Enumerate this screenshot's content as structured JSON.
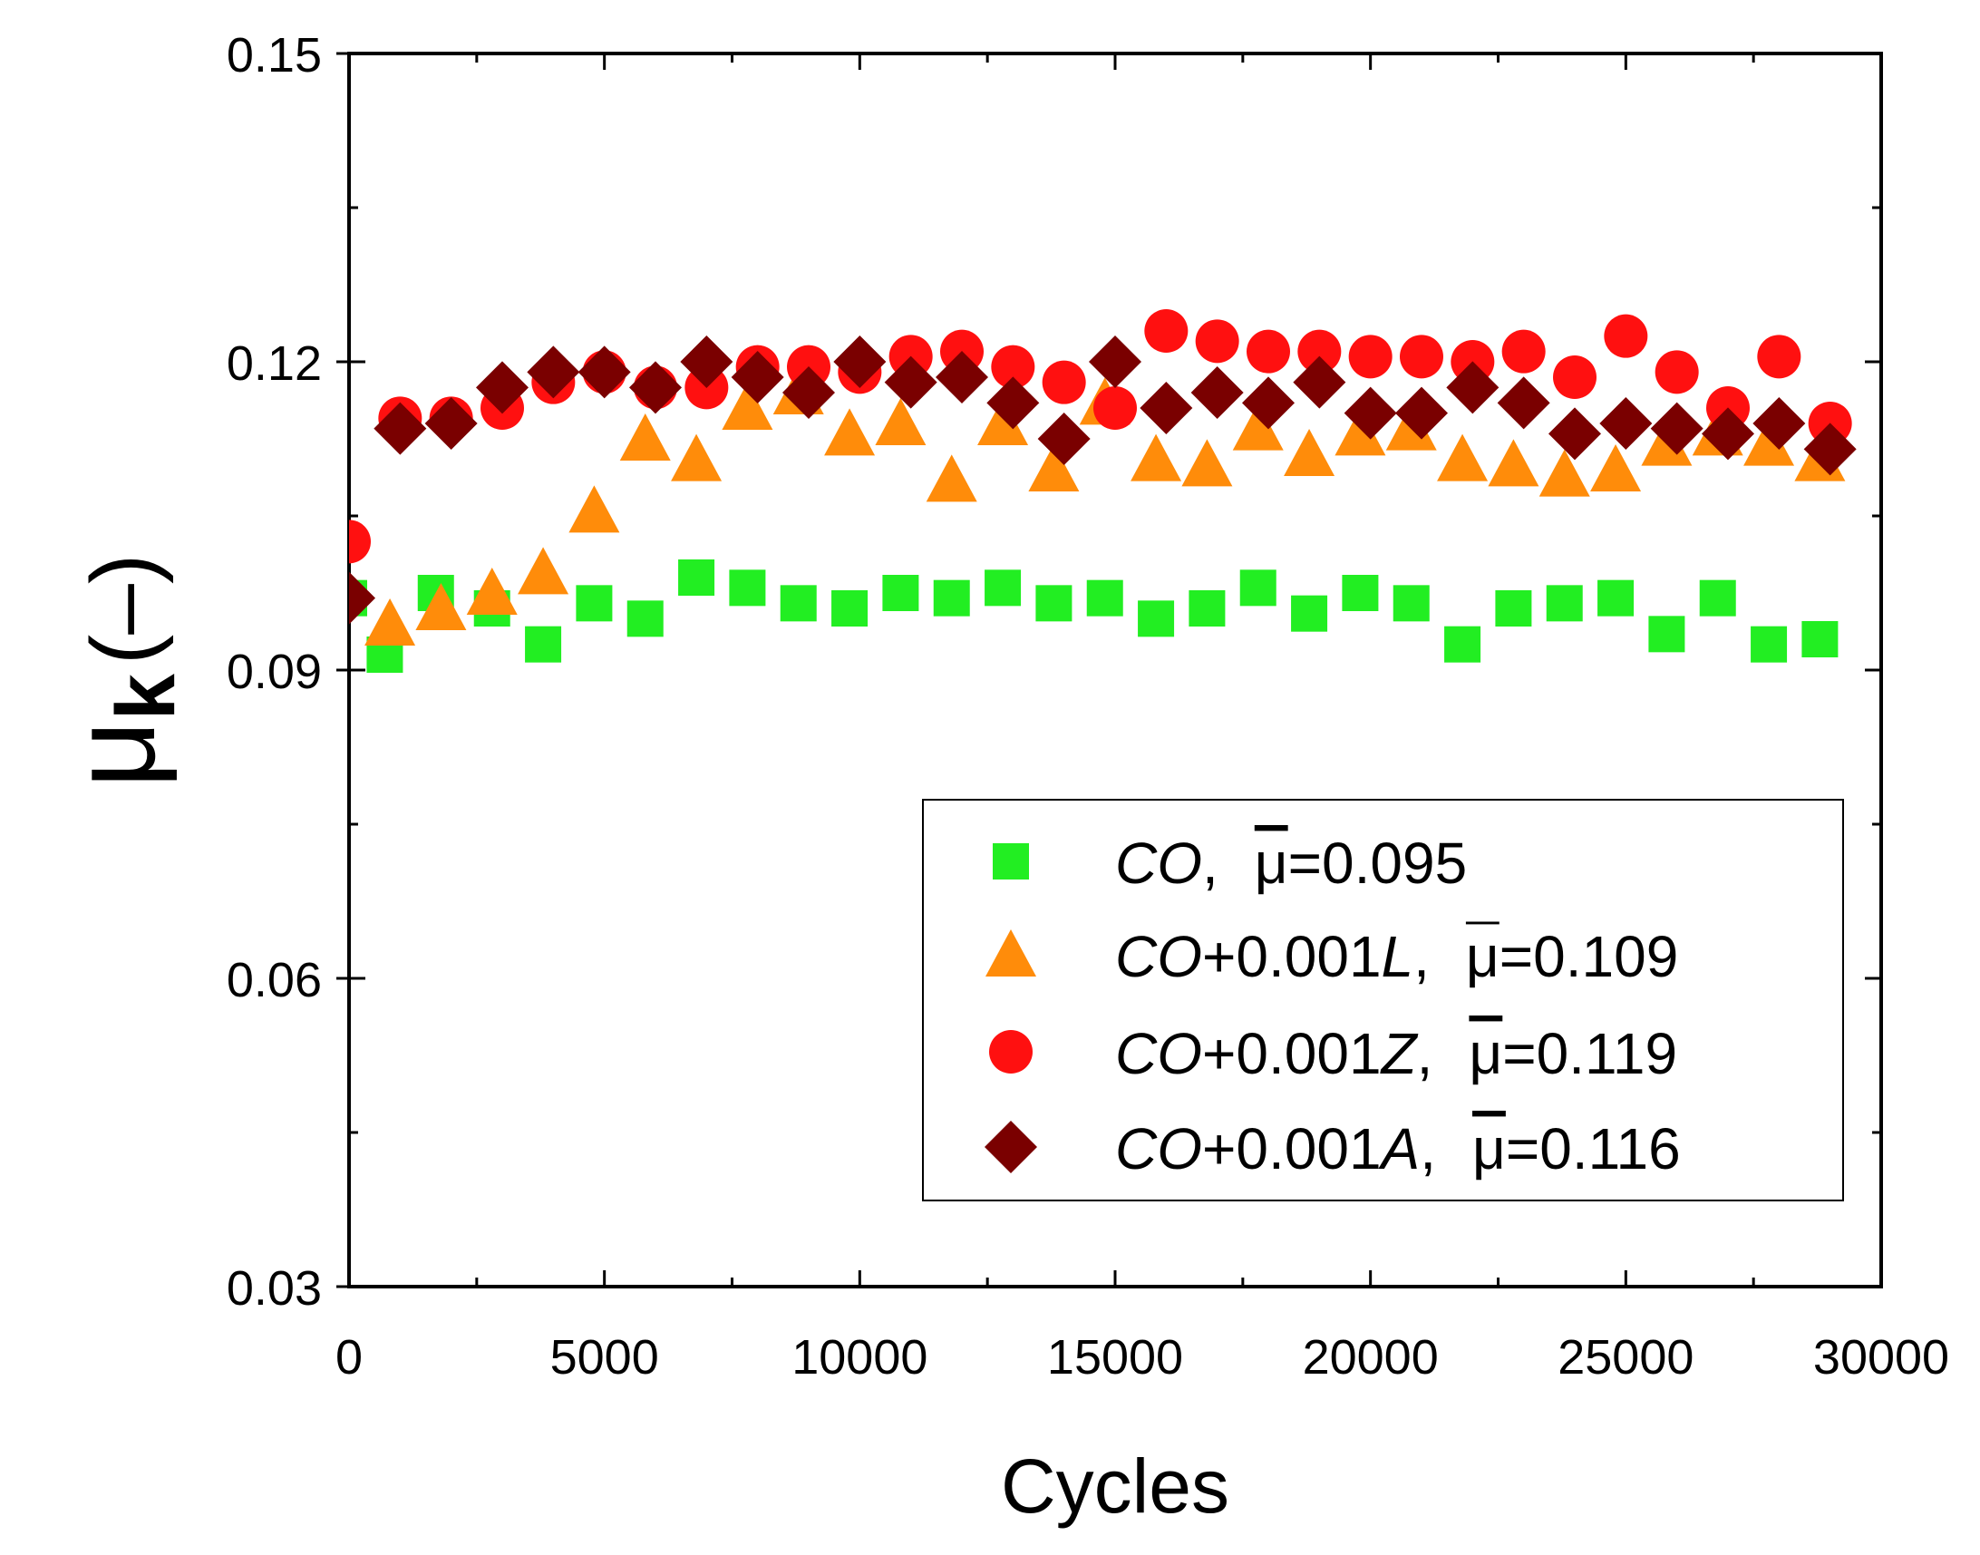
{
  "chart_data": {
    "type": "scatter",
    "title": "",
    "xlabel": "Cycles",
    "ylabel": "μk (–)",
    "ylabel_parts": {
      "symbol": "μ",
      "subscript": "k",
      "unit": "(–)"
    },
    "xlim": [
      0,
      30000
    ],
    "ylim": [
      0.03,
      0.15
    ],
    "xticks": [
      "0",
      "5000",
      "10000",
      "15000",
      "20000",
      "25000",
      "30000"
    ],
    "xtick_values": [
      0,
      5000,
      10000,
      15000,
      20000,
      25000,
      30000
    ],
    "yticks": [
      "0.03",
      "0.06",
      "0.09",
      "0.12",
      "0.15"
    ],
    "ytick_values": [
      0.03,
      0.06,
      0.09,
      0.12,
      0.15
    ],
    "grid": false,
    "legend_position": "bottom-right",
    "series": [
      {
        "name": "CO, μ̄=0.095",
        "label_italic": "CO",
        "label_rest": ",",
        "mean_value": "0.095",
        "marker": "square",
        "color": "#22ee22",
        "points": [
          [
            0,
            0.097
          ],
          [
            700,
            0.0915
          ],
          [
            1700,
            0.0975
          ],
          [
            2800,
            0.096
          ],
          [
            3800,
            0.0925
          ],
          [
            4800,
            0.0965
          ],
          [
            5800,
            0.095
          ],
          [
            6800,
            0.099
          ],
          [
            7800,
            0.098
          ],
          [
            8800,
            0.0965
          ],
          [
            9800,
            0.096
          ],
          [
            10800,
            0.0975
          ],
          [
            11800,
            0.097
          ],
          [
            12800,
            0.098
          ],
          [
            13800,
            0.0965
          ],
          [
            14800,
            0.097
          ],
          [
            15800,
            0.095
          ],
          [
            16800,
            0.096
          ],
          [
            17800,
            0.098
          ],
          [
            18800,
            0.0955
          ],
          [
            19800,
            0.0975
          ],
          [
            20800,
            0.0965
          ],
          [
            21800,
            0.0925
          ],
          [
            22800,
            0.096
          ],
          [
            23800,
            0.0965
          ],
          [
            24800,
            0.097
          ],
          [
            25800,
            0.0935
          ],
          [
            26800,
            0.097
          ],
          [
            27800,
            0.0925
          ],
          [
            28800,
            0.093
          ]
        ]
      },
      {
        "name": "CO+0.001L, μ̄=0.109",
        "label_italic": "CO",
        "label_rest": "+0.001",
        "label_italic2": "L",
        "label_rest2": ",",
        "mean_value": "0.109",
        "marker": "triangle",
        "color": "#ff8c0a",
        "points": [
          [
            800,
            0.0945
          ],
          [
            1800,
            0.096
          ],
          [
            2800,
            0.0975
          ],
          [
            3800,
            0.0995
          ],
          [
            4800,
            0.1055
          ],
          [
            5800,
            0.1125
          ],
          [
            6800,
            0.1105
          ],
          [
            7800,
            0.1155
          ],
          [
            8800,
            0.117
          ],
          [
            9800,
            0.113
          ],
          [
            10800,
            0.114
          ],
          [
            11800,
            0.1085
          ],
          [
            12800,
            0.114
          ],
          [
            13800,
            0.1095
          ],
          [
            14800,
            0.116
          ],
          [
            15800,
            0.1105
          ],
          [
            16800,
            0.11
          ],
          [
            17800,
            0.1135
          ],
          [
            18800,
            0.111
          ],
          [
            19800,
            0.113
          ],
          [
            20800,
            0.1135
          ],
          [
            21800,
            0.1105
          ],
          [
            22800,
            0.11
          ],
          [
            23800,
            0.109
          ],
          [
            24800,
            0.1095
          ],
          [
            25800,
            0.112
          ],
          [
            26800,
            0.113
          ],
          [
            27800,
            0.112
          ],
          [
            28800,
            0.1105
          ]
        ]
      },
      {
        "name": "CO+0.001Z, μ̄=0.119",
        "label_italic": "CO",
        "label_rest": "+0.001",
        "label_italic2": "Z",
        "label_rest2": ",",
        "mean_value": "0.119",
        "marker": "circle",
        "color": "#ff1010",
        "points": [
          [
            0,
            0.1025
          ],
          [
            1000,
            0.1145
          ],
          [
            2000,
            0.1145
          ],
          [
            3000,
            0.1155
          ],
          [
            4000,
            0.118
          ],
          [
            5000,
            0.119
          ],
          [
            6000,
            0.1175
          ],
          [
            7000,
            0.1175
          ],
          [
            8000,
            0.1195
          ],
          [
            9000,
            0.1195
          ],
          [
            10000,
            0.119
          ],
          [
            11000,
            0.1205
          ],
          [
            12000,
            0.121
          ],
          [
            13000,
            0.1195
          ],
          [
            14000,
            0.118
          ],
          [
            15000,
            0.1155
          ],
          [
            16000,
            0.123
          ],
          [
            17000,
            0.122
          ],
          [
            18000,
            0.121
          ],
          [
            19000,
            0.121
          ],
          [
            20000,
            0.1205
          ],
          [
            21000,
            0.1205
          ],
          [
            22000,
            0.12
          ],
          [
            23000,
            0.121
          ],
          [
            24000,
            0.1185
          ],
          [
            25000,
            0.1225
          ],
          [
            26000,
            0.119
          ],
          [
            27000,
            0.1155
          ],
          [
            28000,
            0.1205
          ],
          [
            29000,
            0.114
          ]
        ]
      },
      {
        "name": "CO+0.001A, μ̄=0.116",
        "label_italic": "CO",
        "label_rest": "+0.001",
        "label_italic2": "A",
        "label_rest2": ",",
        "mean_value": "0.116",
        "marker": "diamond",
        "color": "#7a0000",
        "points": [
          [
            0,
            0.097
          ],
          [
            1000,
            0.1135
          ],
          [
            2000,
            0.114
          ],
          [
            3000,
            0.1175
          ],
          [
            4000,
            0.119
          ],
          [
            5000,
            0.119
          ],
          [
            6000,
            0.1175
          ],
          [
            7000,
            0.12
          ],
          [
            8000,
            0.1185
          ],
          [
            9000,
            0.117
          ],
          [
            10000,
            0.12
          ],
          [
            11000,
            0.118
          ],
          [
            12000,
            0.1185
          ],
          [
            13000,
            0.116
          ],
          [
            14000,
            0.1125
          ],
          [
            15000,
            0.12
          ],
          [
            16000,
            0.1155
          ],
          [
            17000,
            0.117
          ],
          [
            18000,
            0.116
          ],
          [
            19000,
            0.118
          ],
          [
            20000,
            0.115
          ],
          [
            21000,
            0.115
          ],
          [
            22000,
            0.1175
          ],
          [
            23000,
            0.116
          ],
          [
            24000,
            0.113
          ],
          [
            25000,
            0.114
          ],
          [
            26000,
            0.1135
          ],
          [
            27000,
            0.113
          ],
          [
            28000,
            0.114
          ],
          [
            29000,
            0.1115
          ]
        ]
      }
    ]
  }
}
